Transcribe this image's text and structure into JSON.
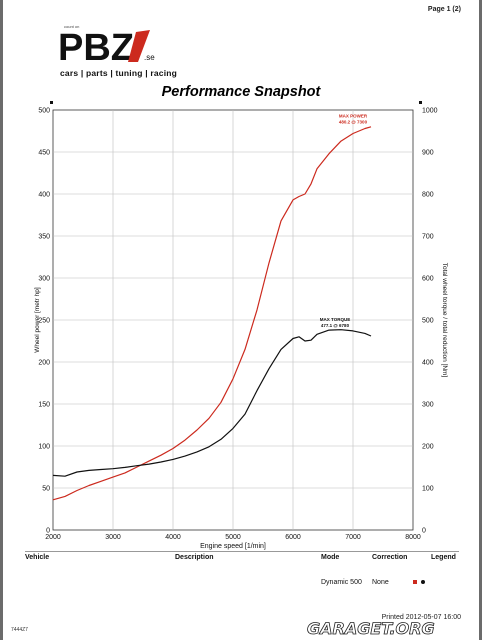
{
  "page_number": "Page 1 (2)",
  "logo": {
    "small_text": "count on",
    "brand": "PBZ",
    "domain": ".se",
    "tagline": "cars | parts | tuning | racing"
  },
  "chart_data": {
    "type": "line",
    "title": "Performance Snapshot",
    "xlabel": "Engine speed [1/min]",
    "ylabel_left": "Wheel power [metr hp]",
    "ylabel_right": "Total wheel torque / total reduction [Nm]",
    "xlim": [
      2000,
      8000
    ],
    "ylim_left": [
      0,
      500
    ],
    "ylim_right": [
      0,
      1000
    ],
    "x_ticks": [
      "2000",
      "3000",
      "4000",
      "5000",
      "6000",
      "7000",
      "8000"
    ],
    "left_ticks": [
      "0",
      "50",
      "100",
      "150",
      "200",
      "250",
      "300",
      "350",
      "400",
      "450",
      "500"
    ],
    "right_ticks": [
      "0",
      "100",
      "200",
      "300",
      "400",
      "500",
      "600",
      "700",
      "800",
      "900",
      "1000"
    ],
    "grid": true,
    "series": [
      {
        "name": "Wheel power",
        "axis": "left",
        "color": "#cc2a1e",
        "x": [
          2000,
          2200,
          2400,
          2600,
          2800,
          3000,
          3200,
          3400,
          3600,
          3800,
          4000,
          4200,
          4400,
          4600,
          4800,
          5000,
          5200,
          5400,
          5600,
          5800,
          6000,
          6100,
          6200,
          6300,
          6400,
          6600,
          6800,
          7000,
          7200,
          7300
        ],
        "y": [
          36,
          40,
          47,
          53,
          58,
          63,
          68,
          75,
          82,
          89,
          97,
          107,
          119,
          133,
          152,
          180,
          215,
          262,
          318,
          368,
          393,
          397,
          400,
          412,
          430,
          448,
          463,
          472,
          478,
          480
        ]
      },
      {
        "name": "Wheel torque",
        "axis": "right",
        "color": "#111111",
        "x": [
          2000,
          2200,
          2400,
          2600,
          2800,
          3000,
          3200,
          3400,
          3600,
          3800,
          4000,
          4200,
          4400,
          4600,
          4800,
          5000,
          5200,
          5400,
          5600,
          5800,
          6000,
          6100,
          6200,
          6300,
          6400,
          6600,
          6800,
          7000,
          7200,
          7300
        ],
        "y": [
          130,
          128,
          138,
          142,
          144,
          146,
          149,
          153,
          157,
          162,
          168,
          176,
          186,
          198,
          216,
          242,
          276,
          332,
          384,
          430,
          456,
          460,
          450,
          452,
          466,
          476,
          477,
          474,
          468,
          462
        ]
      }
    ],
    "annotations": [
      {
        "text": [
          "MAX POWER",
          "480.2 @ 7300"
        ],
        "color": "#cc2a1e",
        "x": 7000,
        "y_left": 491
      },
      {
        "text": [
          "MAX TORQUE",
          "477.1 @ 6780"
        ],
        "color": "#111111",
        "x": 6700,
        "y_left": 249
      }
    ]
  },
  "table": {
    "headers": {
      "vehicle": "Vehicle",
      "description": "Description",
      "mode": "Mode",
      "correction": "Correction",
      "legend": "Legend"
    },
    "row": {
      "mode": "Dynamic 500",
      "correction": "None"
    },
    "legend_colors": [
      "#cc2a1e",
      "#111111"
    ]
  },
  "printed": "Printed 2012-05-07 16:00",
  "footer_id": "7444Z7",
  "watermark": "GARAGET.ORG"
}
